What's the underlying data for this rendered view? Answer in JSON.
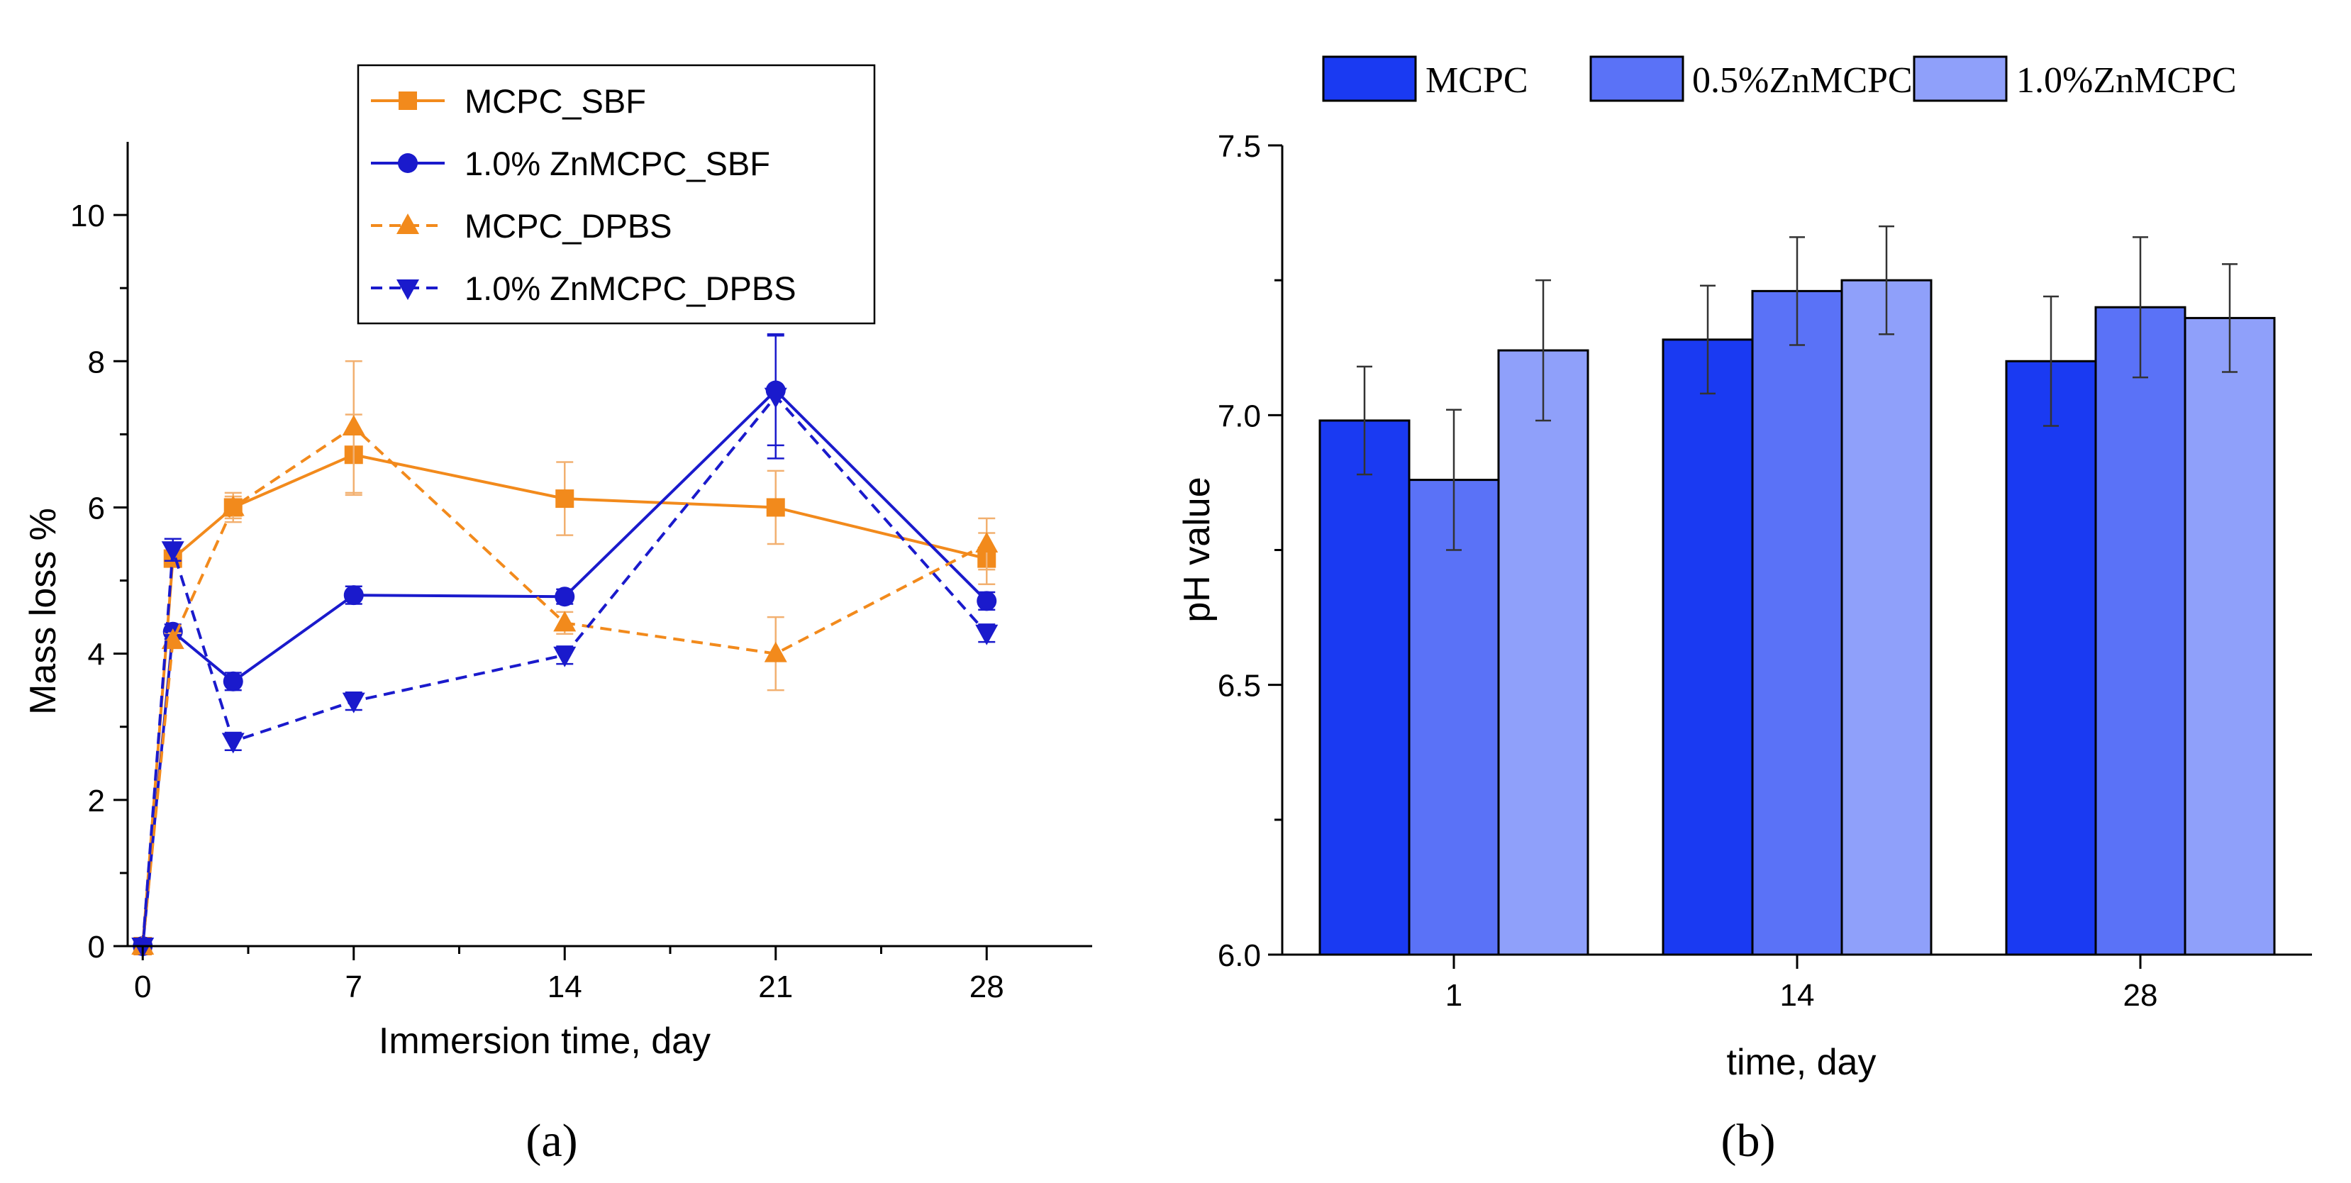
{
  "colors": {
    "orange": "#F28A1C",
    "blue": "#1A1ACC",
    "errorbar_a": "#F2B070",
    "axis": "#000000",
    "bar_mcpc": "#1A3AF2",
    "bar_05": "#5A72F7",
    "bar_10": "#8FA0FA"
  },
  "panel_labels": {
    "a": "(a)",
    "b": "(b)"
  },
  "chart_data": [
    {
      "id": "a",
      "type": "line",
      "title": "",
      "xlabel": "Immersion time, day",
      "ylabel": "Mass loss %",
      "xlim": [
        -0.5,
        31.5
      ],
      "ylim": [
        0,
        11
      ],
      "xticks": [
        0,
        7,
        14,
        21,
        28
      ],
      "yticks": [
        0,
        2,
        4,
        6,
        8,
        10
      ],
      "grid": false,
      "legend_position": "top-right",
      "series": [
        {
          "name": "MCPC_SBF",
          "color": "orange",
          "dash": false,
          "marker": "square",
          "x": [
            0,
            1,
            3,
            7,
            14,
            21,
            28
          ],
          "y": [
            0,
            5.3,
            6.0,
            6.72,
            6.12,
            6.0,
            5.3
          ],
          "err": [
            0,
            0.1,
            0.2,
            0.55,
            0.5,
            0.5,
            0.35
          ]
        },
        {
          "name": "1.0% ZnMCPC_SBF",
          "color": "blue",
          "dash": false,
          "marker": "circle",
          "x": [
            0,
            1,
            3,
            7,
            14,
            21,
            28
          ],
          "y": [
            0,
            4.3,
            3.62,
            4.8,
            4.78,
            7.6,
            4.72
          ],
          "err": [
            0,
            0.1,
            0.12,
            0.12,
            0.1,
            0.75,
            0.12
          ]
        },
        {
          "name": "MCPC_DPBS",
          "color": "orange",
          "dash": true,
          "marker": "triangle-up",
          "x": [
            0,
            1,
            3,
            7,
            14,
            21,
            28
          ],
          "y": [
            0,
            4.18,
            6.0,
            7.1,
            4.42,
            4.0,
            5.5
          ],
          "err": [
            0,
            0.1,
            0.15,
            0.9,
            0.15,
            0.5,
            0.35
          ]
        },
        {
          "name": "1.0% ZnMCPC_DPBS",
          "color": "blue",
          "dash": true,
          "marker": "triangle-down",
          "x": [
            0,
            1,
            3,
            7,
            14,
            21,
            28
          ],
          "y": [
            0,
            5.42,
            2.8,
            3.35,
            3.98,
            7.52,
            4.28
          ],
          "err": [
            0,
            0.15,
            0.12,
            0.12,
            0.12,
            0.85,
            0.12
          ]
        }
      ]
    },
    {
      "id": "b",
      "type": "bar",
      "title": "",
      "xlabel": "time, day",
      "ylabel": "pH value",
      "categories": [
        "1",
        "14",
        "28"
      ],
      "ylim": [
        6.0,
        7.5
      ],
      "yticks": [
        "6.0",
        "6.5",
        "7.0",
        "7.5"
      ],
      "grid": false,
      "legend_position": "top",
      "series": [
        {
          "name": "MCPC",
          "color": "bar_mcpc",
          "values": [
            6.99,
            7.14,
            7.1
          ],
          "err": [
            0.1,
            0.1,
            0.12
          ]
        },
        {
          "name": "0.5%ZnMCPC",
          "color": "bar_05",
          "values": [
            6.88,
            7.23,
            7.2
          ],
          "err": [
            0.13,
            0.1,
            0.13
          ]
        },
        {
          "name": "1.0%ZnMCPC",
          "color": "bar_10",
          "values": [
            7.12,
            7.25,
            7.18
          ],
          "err": [
            0.13,
            0.1,
            0.1
          ]
        }
      ]
    }
  ]
}
